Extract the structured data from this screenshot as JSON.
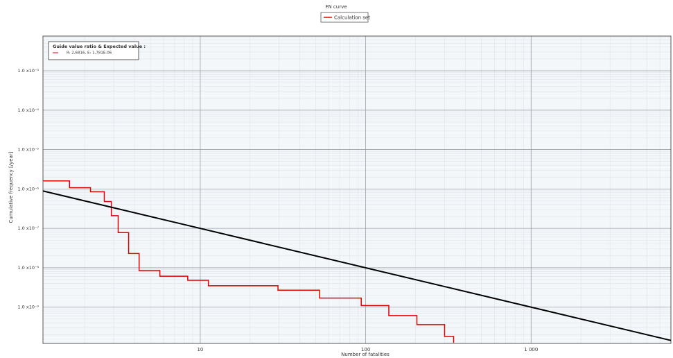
{
  "chart_data": {
    "type": "step-line",
    "title": "FN curve",
    "x_label": "Number of fatalities",
    "y_label": "Cumulative frequency [/year]",
    "log_x": true,
    "log_y": true,
    "grid": true,
    "xlim": [
      1.12,
      7000
    ],
    "ylim": [
      1.2e-10,
      0.0076
    ],
    "xticks": [
      10,
      100,
      {
        "value": 1000,
        "label": "1 000"
      }
    ],
    "yticks": [
      {
        "value": 0.001,
        "label": "1.0 x10⁻³"
      },
      {
        "value": 0.0001,
        "label": "1.0 x10⁻⁴"
      },
      {
        "value": 1e-05,
        "label": "1.0 x10⁻⁵"
      },
      {
        "value": 1e-06,
        "label": "1.0 x10⁻⁶"
      },
      {
        "value": 1e-07,
        "label": "1.0 x10⁻⁷"
      },
      {
        "value": 1e-08,
        "label": "1.0 x10⁻⁸"
      },
      {
        "value": 1e-09,
        "label": "1.0 x10⁻⁹"
      }
    ],
    "legend_position": "top",
    "annotation": {
      "title": "Guide value ratio & Expected value :",
      "text": "R: 2,6816, E: 1,781E-06"
    },
    "series": [
      {
        "name": "Calculation set",
        "color": "#e00000",
        "step": true,
        "x": [
          1.12,
          1.62,
          2.17,
          2.63,
          2.9,
          3.19,
          3.69,
          4.27,
          5.7,
          8.4,
          11.2,
          29.5,
          52.6,
          94,
          138,
          204,
          300,
          340
        ],
        "values": [
          1.6e-06,
          1.08e-06,
          8.5e-07,
          4.8e-07,
          2.1e-07,
          7.8e-08,
          2.3e-08,
          8.5e-09,
          6.1e-09,
          4.8e-09,
          3.5e-09,
          2.7e-09,
          1.7e-09,
          1.1e-09,
          6.1e-10,
          3.6e-10,
          1.8e-10,
          1.25e-10
        ]
      },
      {
        "color": "#000000",
        "step": false,
        "x": [
          1.12,
          7000
        ],
        "values": [
          8.9e-07,
          1.43e-10
        ]
      }
    ]
  }
}
